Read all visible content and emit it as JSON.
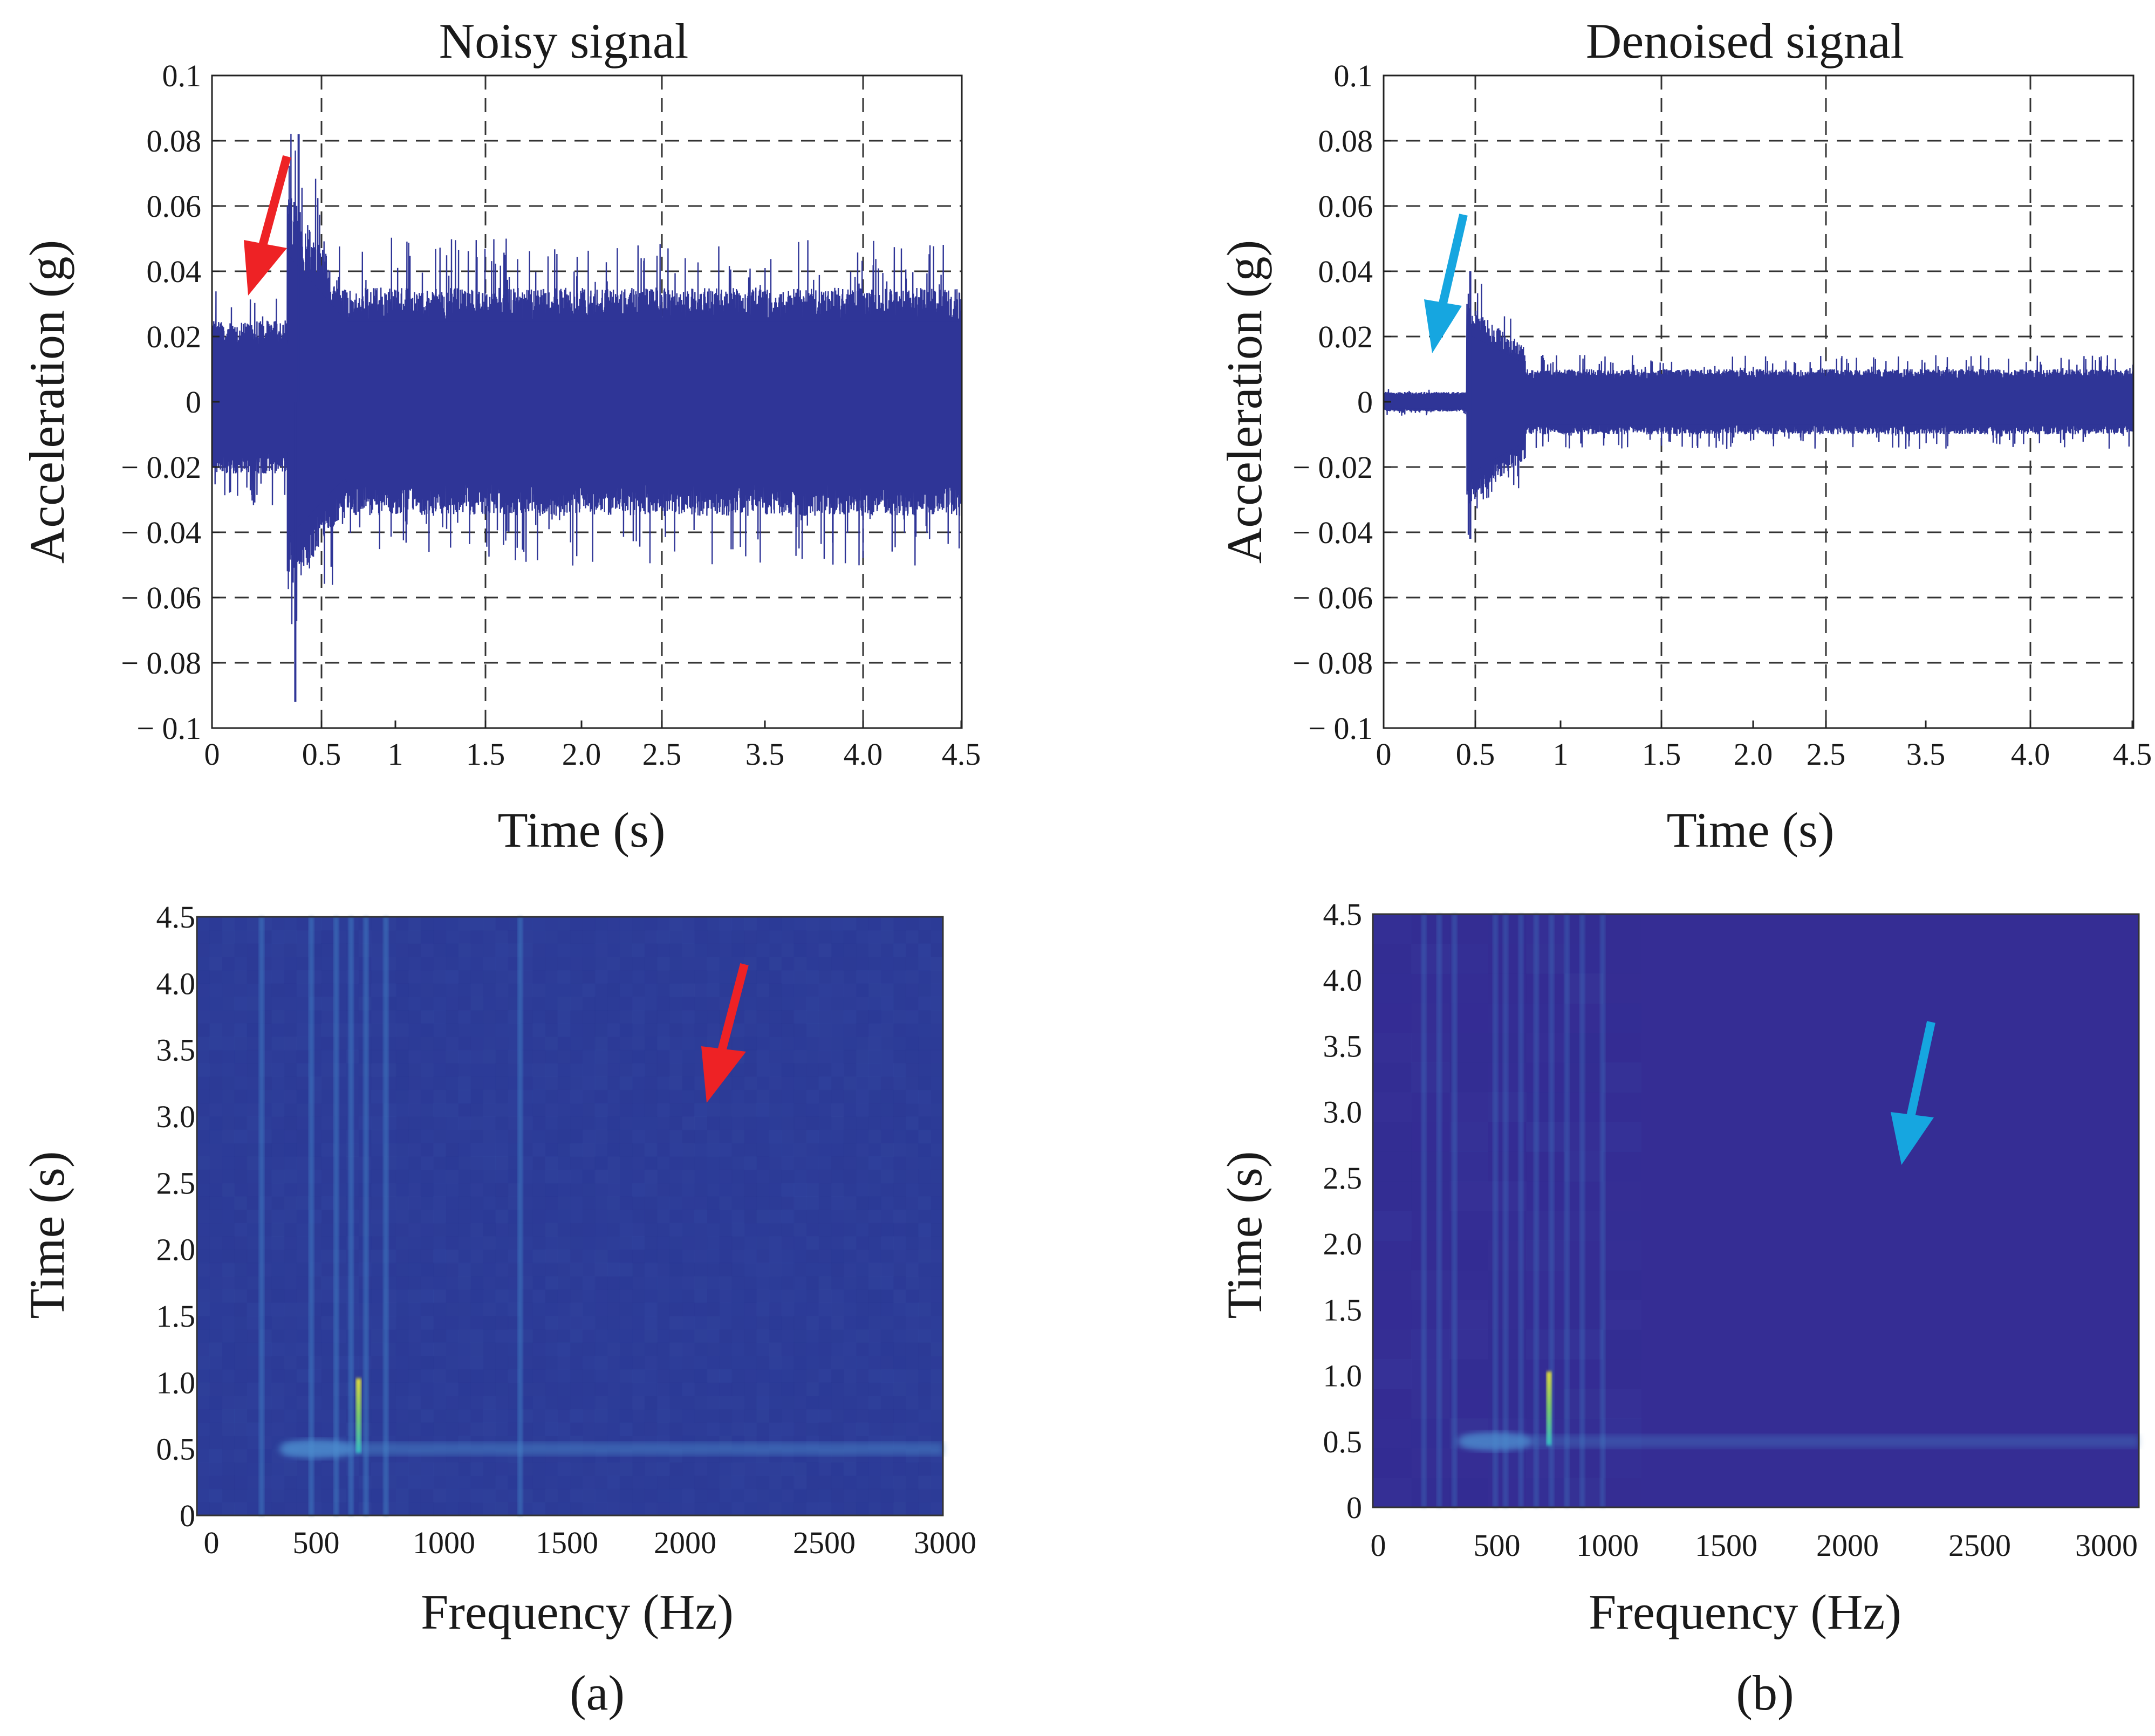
{
  "colors": {
    "signal": "#2f3597",
    "spec_bg_noisy": "#2d3c98",
    "spec_bg_denoised": "#352d94",
    "arrow_noisy": "#ee2225",
    "arrow_denoised": "#16a6e0",
    "grid": "#333333"
  },
  "panel_labels": {
    "a": "(a)",
    "b": "(b)"
  },
  "chart_data": [
    {
      "id": "noisy-time",
      "type": "line",
      "title": "Noisy signal",
      "xlabel": "Time (s)",
      "ylabel": "Acceleration (g)",
      "xlim": [
        0,
        4.5
      ],
      "ylim": [
        -0.1,
        0.1
      ],
      "grid": true,
      "xticks": [
        "0",
        "0.5",
        "1",
        "1.5",
        "2.0",
        "2.5",
        "3.5",
        "4.0",
        "4.5"
      ],
      "yticks": [
        "0.1",
        "0.08",
        "0.06",
        "0.04",
        "0.02",
        "0",
        "− 0.02",
        "− 0.04",
        "− 0.06",
        "− 0.08",
        "− 0.1"
      ],
      "series": [
        {
          "name": "acceleration envelope",
          "segments": [
            {
              "t_start": 0.0,
              "t_end": 0.45,
              "upper": 0.025,
              "lower": -0.022
            },
            {
              "t_start": 0.45,
              "t_end": 0.8,
              "upper": 0.065,
              "lower": -0.06
            },
            {
              "t_start": 0.8,
              "t_end": 4.5,
              "upper": 0.035,
              "lower": -0.035
            }
          ],
          "peak_max": {
            "t": 0.52,
            "value": 0.082
          },
          "peak_min": {
            "t": 0.5,
            "value": -0.092
          }
        }
      ],
      "annotations": [
        {
          "type": "arrow",
          "color": "red",
          "points_to": {
            "t": 0.2,
            "value": 0.032
          }
        }
      ]
    },
    {
      "id": "denoised-time",
      "type": "line",
      "title": "Denoised signal",
      "xlabel": "Time (s)",
      "ylabel": "Acceleration (g)",
      "xlim": [
        0,
        4.5
      ],
      "ylim": [
        -0.1,
        0.1
      ],
      "grid": true,
      "xticks": [
        "0",
        "0.5",
        "1",
        "1.5",
        "2.0",
        "2.5",
        "3.5",
        "4.0",
        "4.5"
      ],
      "yticks": [
        "0.1",
        "0.08",
        "0.06",
        "0.04",
        "0.02",
        "0",
        "− 0.02",
        "− 0.04",
        "− 0.06",
        "− 0.08",
        "− 0.1"
      ],
      "series": [
        {
          "name": "acceleration envelope",
          "segments": [
            {
              "t_start": 0.0,
              "t_end": 0.5,
              "upper": 0.003,
              "lower": -0.003
            },
            {
              "t_start": 0.5,
              "t_end": 0.85,
              "upper": 0.03,
              "lower": -0.032
            },
            {
              "t_start": 0.85,
              "t_end": 4.5,
              "upper": 0.01,
              "lower": -0.01
            }
          ],
          "peak_max": {
            "t": 0.52,
            "value": 0.04
          },
          "peak_min": {
            "t": 0.52,
            "value": -0.042
          }
        }
      ],
      "annotations": [
        {
          "type": "arrow",
          "color": "cyan",
          "points_to": {
            "t": 0.25,
            "value": 0.015
          }
        }
      ]
    },
    {
      "id": "noisy-spectrogram",
      "type": "heatmap",
      "xlabel": "Frequency (Hz)",
      "ylabel": "Time (s)",
      "xlim": [
        0,
        3000
      ],
      "ylim": [
        0,
        4.5
      ],
      "grid": false,
      "xticks": [
        "0",
        "500",
        "1000",
        "1500",
        "2000",
        "2500",
        "3000"
      ],
      "yticks": [
        "4.5",
        "4.0",
        "3.5",
        "3.0",
        "2.5",
        "2.0",
        "1.5",
        "1.0",
        "0.5",
        "0"
      ],
      "spectral_lines_hz": [
        260,
        460,
        560,
        620,
        680,
        760,
        1300
      ],
      "hotspot": {
        "freq_hz": 650,
        "time_s": 0.75
      },
      "onset_band": {
        "time_s": 0.5,
        "freq_from_hz": 350,
        "freq_to_hz": 3000
      },
      "annotations": [
        {
          "type": "arrow",
          "color": "red",
          "points_to": {
            "freq_hz": 2050,
            "time_s": 3.0
          }
        }
      ]
    },
    {
      "id": "denoised-spectrogram",
      "type": "heatmap",
      "xlabel": "Frequency (Hz)",
      "ylabel": "Time (s)",
      "xlim": [
        0,
        3000
      ],
      "ylim": [
        0,
        4.5
      ],
      "grid": false,
      "xticks": [
        "0",
        "500",
        "1000",
        "1500",
        "2000",
        "2500",
        "3000"
      ],
      "yticks": [
        "4.5",
        "4.0",
        "3.5",
        "3.0",
        "2.5",
        "2.0",
        "1.5",
        "1.0",
        "0.5",
        "0"
      ],
      "spectral_lines_hz": [
        200,
        260,
        320,
        480,
        520,
        580,
        640,
        700,
        760,
        820,
        900
      ],
      "hotspot": {
        "freq_hz": 690,
        "time_s": 0.75
      },
      "onset_band": {
        "time_s": 0.5,
        "freq_from_hz": 350,
        "freq_to_hz": 3000
      },
      "annotations": [
        {
          "type": "arrow",
          "color": "cyan",
          "points_to": {
            "freq_hz": 2150,
            "time_s": 2.6
          }
        }
      ]
    }
  ]
}
